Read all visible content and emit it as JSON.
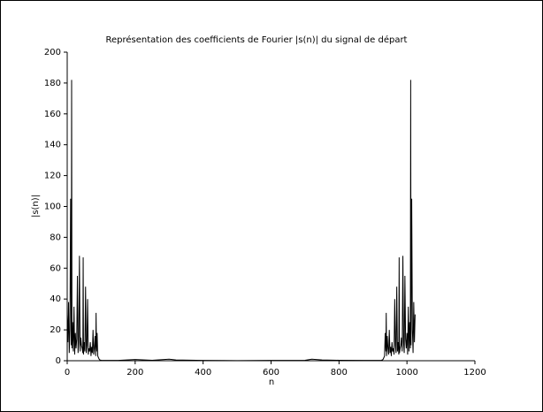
{
  "chart_data": {
    "type": "line",
    "title": "Représentation des coefficients de Fourier |s(n)| du signal de départ",
    "x_label": "n",
    "y_label": "|s(n)|",
    "x": [
      0,
      2,
      4,
      6,
      8,
      10,
      12,
      13,
      14,
      16,
      18,
      20,
      22,
      24,
      26,
      28,
      30,
      32,
      34,
      36,
      38,
      40,
      42,
      44,
      46,
      47,
      48,
      50,
      52,
      54,
      56,
      58,
      60,
      62,
      64,
      66,
      68,
      70,
      72,
      74,
      76,
      78,
      80,
      82,
      84,
      85,
      86,
      88,
      90,
      92,
      94,
      96,
      100,
      150,
      200,
      250,
      300,
      320,
      400,
      500,
      600,
      700,
      720,
      750,
      800,
      874,
      924,
      928,
      930,
      932,
      934,
      936,
      938,
      939,
      940,
      942,
      944,
      946,
      948,
      950,
      952,
      954,
      956,
      958,
      960,
      962,
      964,
      966,
      968,
      970,
      972,
      974,
      976,
      977,
      978,
      980,
      982,
      984,
      986,
      988,
      990,
      992,
      994,
      996,
      998,
      1000,
      1002,
      1004,
      1006,
      1008,
      1010,
      1011,
      1012,
      1014,
      1016,
      1018,
      1020,
      1022,
      1024
    ],
    "series": [
      {
        "color": "#000000",
        "values": [
          30,
          12,
          38,
          5,
          20,
          105,
          10,
          182,
          8,
          25,
          6,
          35,
          4,
          18,
          8,
          14,
          55,
          5,
          12,
          68,
          6,
          15,
          10,
          8,
          5,
          67,
          4,
          12,
          6,
          48,
          5,
          10,
          40,
          4,
          8,
          6,
          12,
          3,
          9,
          5,
          20,
          4,
          8,
          16,
          3,
          31,
          6,
          18,
          3,
          2,
          1,
          0.5,
          0.3,
          0.2,
          0.8,
          0.3,
          1,
          0.5,
          0.2,
          0.1,
          0.2,
          0.3,
          1,
          0.5,
          0.3,
          0.2,
          0.3,
          0.5,
          1,
          2,
          3,
          18,
          6,
          31,
          3,
          16,
          8,
          4,
          20,
          5,
          9,
          3,
          12,
          6,
          8,
          4,
          40,
          10,
          5,
          48,
          6,
          12,
          4,
          67,
          5,
          8,
          10,
          15,
          6,
          68,
          12,
          5,
          55,
          14,
          8,
          18,
          4,
          35,
          6,
          25,
          8,
          182,
          10,
          105,
          20,
          5,
          38,
          12,
          30
        ]
      }
    ],
    "xlim": [
      0,
      1200
    ],
    "xticks": [
      0,
      200,
      400,
      600,
      800,
      1000,
      1200
    ],
    "ylim": [
      0,
      200
    ],
    "yticks": [
      0,
      20,
      40,
      60,
      80,
      100,
      120,
      140,
      160,
      180,
      200
    ]
  }
}
